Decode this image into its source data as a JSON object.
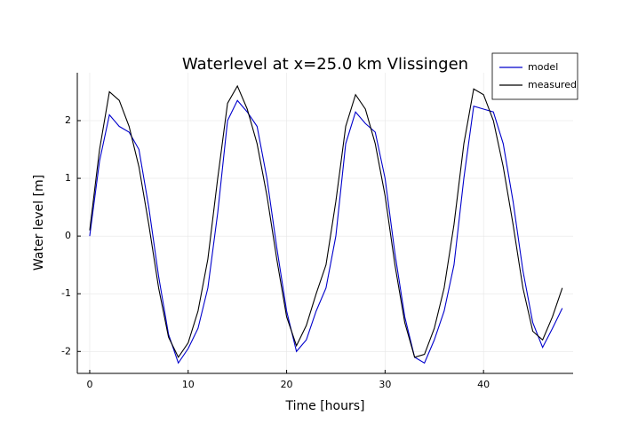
{
  "chart_data": {
    "type": "line",
    "title": "Waterlevel at x=25.0 km Vlissingen",
    "x_label": "Time [hours]",
    "y_label": "Water level [m]",
    "x": [
      0,
      1,
      2,
      3,
      4,
      5,
      6,
      7,
      8,
      9,
      10,
      11,
      12,
      13,
      14,
      15,
      16,
      17,
      18,
      19,
      20,
      21,
      22,
      23,
      24,
      25,
      26,
      27,
      28,
      29,
      30,
      31,
      32,
      33,
      34,
      35,
      36,
      37,
      38,
      39,
      40,
      41,
      42,
      43,
      44,
      45,
      46,
      47,
      48
    ],
    "series": [
      {
        "name": "model",
        "color": "#0000cc",
        "values": [
          0.0,
          1.3,
          2.1,
          1.9,
          1.8,
          1.5,
          0.5,
          -0.7,
          -1.7,
          -2.2,
          -1.95,
          -1.6,
          -0.9,
          0.4,
          2.0,
          2.35,
          2.15,
          1.9,
          1.0,
          -0.2,
          -1.3,
          -2.0,
          -1.8,
          -1.3,
          -0.9,
          0.0,
          1.6,
          2.15,
          1.95,
          1.8,
          1.0,
          -0.3,
          -1.4,
          -2.1,
          -2.2,
          -1.8,
          -1.3,
          -0.5,
          1.0,
          2.25,
          2.2,
          2.15,
          1.6,
          0.6,
          -0.6,
          -1.5,
          -1.93,
          -1.6,
          -1.25
        ]
      },
      {
        "name": "measured",
        "color": "#000000",
        "values": [
          0.1,
          1.5,
          2.5,
          2.35,
          1.9,
          1.2,
          0.2,
          -0.9,
          -1.75,
          -2.1,
          -1.85,
          -1.3,
          -0.4,
          1.0,
          2.3,
          2.6,
          2.2,
          1.6,
          0.7,
          -0.4,
          -1.4,
          -1.9,
          -1.55,
          -1.0,
          -0.5,
          0.6,
          1.9,
          2.45,
          2.2,
          1.6,
          0.7,
          -0.5,
          -1.5,
          -2.1,
          -2.05,
          -1.6,
          -0.9,
          0.2,
          1.6,
          2.55,
          2.45,
          2.0,
          1.2,
          0.2,
          -0.9,
          -1.65,
          -1.8,
          -1.4,
          -0.9
        ]
      }
    ],
    "xlim": [
      -1.26,
      49.1
    ],
    "xticks": [
      0,
      10,
      20,
      30,
      40
    ],
    "ylim": [
      -2.38,
      2.83
    ],
    "yticks": [
      -2,
      -1,
      0,
      1,
      2
    ],
    "grid": true,
    "legend": "top right"
  }
}
